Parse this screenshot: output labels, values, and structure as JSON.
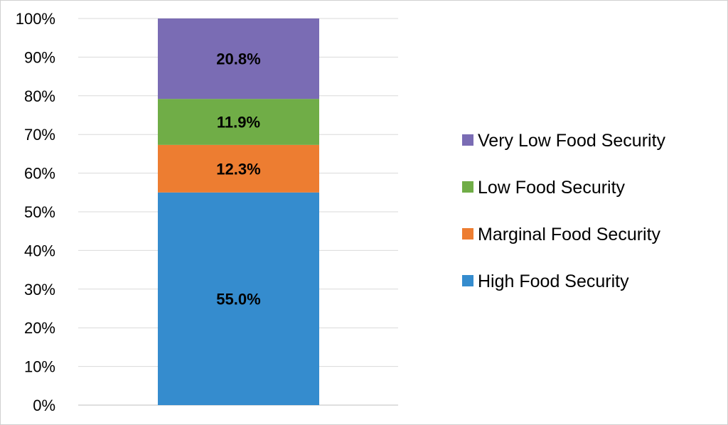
{
  "chart_data": {
    "type": "bar",
    "stacked": true,
    "categories": [
      ""
    ],
    "series": [
      {
        "name": "High Food Security",
        "values": [
          55.0
        ],
        "label": "55.0%",
        "color": "#358CCE"
      },
      {
        "name": "Marginal Food Security",
        "values": [
          12.3
        ],
        "label": "12.3%",
        "color": "#ED7D31"
      },
      {
        "name": "Low Food Security",
        "values": [
          11.9
        ],
        "label": "11.9%",
        "color": "#70AD47"
      },
      {
        "name": "Very Low Food Security",
        "values": [
          20.8
        ],
        "label": "20.8%",
        "color": "#7A6CB4"
      }
    ],
    "y_ticks": [
      "0%",
      "10%",
      "20%",
      "30%",
      "40%",
      "50%",
      "60%",
      "70%",
      "80%",
      "90%",
      "100%"
    ],
    "ylim": [
      0,
      100
    ],
    "grid": true,
    "legend_position": "right",
    "legend_order": [
      "Very Low Food Security",
      "Low Food Security",
      "Marginal Food Security",
      "High Food Security"
    ],
    "title": "",
    "xlabel": "",
    "ylabel": ""
  }
}
